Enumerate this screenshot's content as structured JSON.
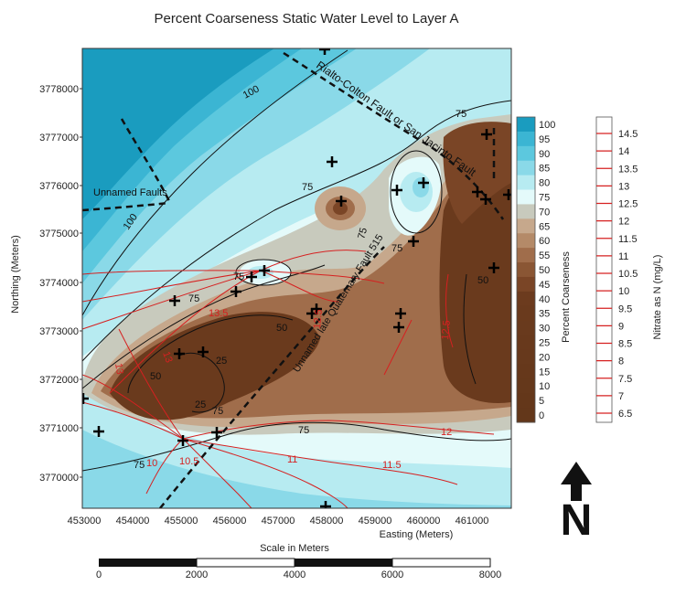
{
  "title": "Percent Coarseness Static Water Level to Layer A",
  "axes": {
    "ylabel": "Northing (Meters)",
    "xlabel": "Easting (Meters)",
    "xticks": [
      "453000",
      "454000",
      "455000",
      "456000",
      "457000",
      "458000",
      "459000",
      "460000",
      "461000"
    ],
    "yticks": [
      "3778000",
      "3777000",
      "3776000",
      "3775000",
      "3774000",
      "3773000",
      "3772000",
      "3771000",
      "3770000"
    ]
  },
  "map_labels": {
    "rialto_fault": "Rialto-Colton Fault or San Jacinto Fault",
    "unnamed_faults": "Unnamed Faults",
    "quaternary_fault": "Unnamed late Quaternary Fault 515"
  },
  "contour_labels": {
    "black": [
      "100",
      "100",
      "75",
      "75",
      "75",
      "75",
      "75",
      "75",
      "75",
      "75",
      "75",
      "50",
      "50",
      "25",
      "25",
      "50"
    ],
    "red": [
      "13.5",
      "13",
      "12",
      "11.5",
      "11",
      "10.5",
      "10",
      "12.5",
      "12.5",
      "13"
    ]
  },
  "coarseness_legend": {
    "title": "Percent Coarseness",
    "labels": [
      "100",
      "95",
      "90",
      "85",
      "80",
      "75",
      "70",
      "65",
      "60",
      "55",
      "50",
      "45",
      "40",
      "35",
      "30",
      "25",
      "20",
      "15",
      "10",
      "5",
      "0"
    ],
    "colors": [
      "#1a9cbf",
      "#3bb5d3",
      "#5cc8de",
      "#8ad9e8",
      "#b7ebf1",
      "#e4fafa",
      "#c8cabd",
      "#c6a88c",
      "#b48a68",
      "#a06d4b",
      "#8a5634",
      "#7a4526",
      "#6c3b1e",
      "#6a3a1d",
      "#693a1d",
      "#68391c",
      "#67391c",
      "#66381b",
      "#65381b",
      "#64371a",
      "#63371a"
    ]
  },
  "nitrate_legend": {
    "title": "Nitrate as N (mg/L)",
    "labels": [
      "14.5",
      "14",
      "13.5",
      "13",
      "12.5",
      "12",
      "11.5",
      "11",
      "10.5",
      "10",
      "9.5",
      "9",
      "8.5",
      "8",
      "7.5",
      "7",
      "6.5"
    ],
    "line_color": "#d62020"
  },
  "north_arrow": {
    "label": "N"
  },
  "scale_bar": {
    "title": "Scale in Meters",
    "ticks": [
      "0",
      "2000",
      "4000",
      "6000",
      "8000"
    ]
  }
}
